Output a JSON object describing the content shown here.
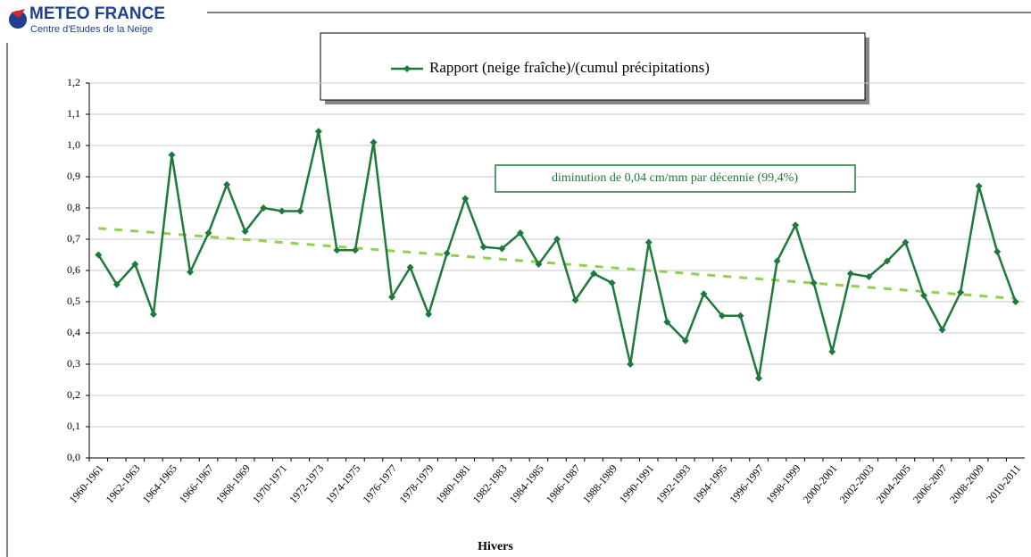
{
  "header": {
    "brand": "METEO FRANCE",
    "subtitle": "Centre d'Etudes de la Neige"
  },
  "chart_data": {
    "type": "line",
    "x_label": "Hivers",
    "annotation": "diminution de 0,04  cm/mm par décennie (99,4%)",
    "categories": [
      "1960-1961",
      null,
      "1962-1963",
      null,
      "1964-1965",
      null,
      "1966-1967",
      null,
      "1968-1969",
      null,
      "1970-1971",
      null,
      "1972-1973",
      null,
      "1974-1975",
      null,
      "1976-1977",
      null,
      "1978-1979",
      null,
      "1980-1981",
      null,
      "1982-1983",
      null,
      "1984-1985",
      null,
      "1986-1987",
      null,
      "1988-1989",
      null,
      "1990-1991",
      null,
      "1992-1993",
      null,
      "1994-1995",
      null,
      "1996-1997",
      null,
      "1998-1999",
      null,
      "2000-2001",
      null,
      "2002-2003",
      null,
      "2004-2005",
      null,
      "2006-2007",
      null,
      "2008-2009",
      null,
      "2010-2011"
    ],
    "series": [
      {
        "name": "Rapport (neige fraîche)/(cumul précipitations)",
        "color": "#1e7a3c",
        "values": [
          0.65,
          0.555,
          0.62,
          0.46,
          0.97,
          0.595,
          0.72,
          0.875,
          0.725,
          0.8,
          0.79,
          0.79,
          1.045,
          0.665,
          0.665,
          1.01,
          0.515,
          0.61,
          0.46,
          0.655,
          0.83,
          0.675,
          0.67,
          0.72,
          0.62,
          0.7,
          0.505,
          0.59,
          0.56,
          0.3,
          0.69,
          0.435,
          0.375,
          0.525,
          0.455,
          0.455,
          0.255,
          0.63,
          0.745,
          0.56,
          0.34,
          0.59,
          0.58,
          0.63,
          0.69,
          0.52,
          0.41,
          0.53,
          0.87,
          0.66,
          0.5
        ]
      }
    ],
    "trend": {
      "start": 0.735,
      "end": 0.51,
      "color": "#92d050"
    },
    "ylim": [
      0,
      1.2
    ],
    "yticks": [
      {
        "value": 0,
        "label": "0,0"
      },
      {
        "value": 0.1,
        "label": "0,1"
      },
      {
        "value": 0.2,
        "label": "0,2"
      },
      {
        "value": 0.3,
        "label": "0,3"
      },
      {
        "value": 0.4,
        "label": "0,4"
      },
      {
        "value": 0.5,
        "label": "0,5"
      },
      {
        "value": 0.6,
        "label": "0,6"
      },
      {
        "value": 0.7,
        "label": "0,7"
      },
      {
        "value": 0.8,
        "label": "0,8"
      },
      {
        "value": 0.9,
        "label": "0,9"
      },
      {
        "value": 1.0,
        "label": "1,0"
      },
      {
        "value": 1.1,
        "label": "1,1"
      },
      {
        "value": 1.2,
        "label": "1,2"
      }
    ],
    "grid": true
  }
}
